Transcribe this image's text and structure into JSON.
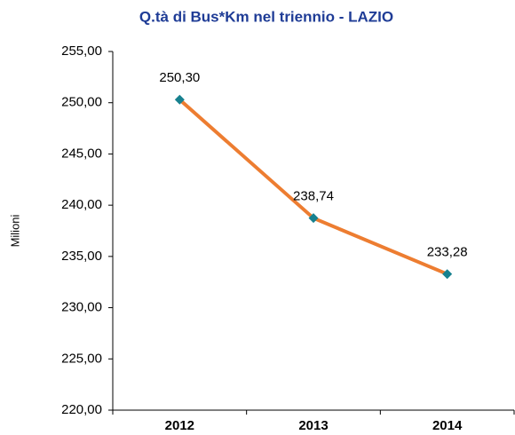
{
  "chart_data": {
    "type": "line",
    "title": "Q.tà di Bus*Km nel triennio - LAZIO",
    "y_label": "Milioni",
    "categories": [
      "2012",
      "2013",
      "2014"
    ],
    "series": [
      {
        "name": "Bus*Km",
        "color": "#ed7d31",
        "marker_color": "#17818f",
        "values": [
          250.3,
          238.74,
          233.28
        ],
        "value_labels": [
          "250,30",
          "238,74",
          "233,28"
        ]
      }
    ],
    "ylim": [
      220,
      255
    ],
    "yticks": [
      {
        "value": 220,
        "label": "220,00"
      },
      {
        "value": 225,
        "label": "225,00"
      },
      {
        "value": 230,
        "label": "230,00"
      },
      {
        "value": 235,
        "label": "235,00"
      },
      {
        "value": 240,
        "label": "240,00"
      },
      {
        "value": 245,
        "label": "245,00"
      },
      {
        "value": 250,
        "label": "250,00"
      },
      {
        "value": 255,
        "label": "255,00"
      }
    ],
    "grid": false
  }
}
